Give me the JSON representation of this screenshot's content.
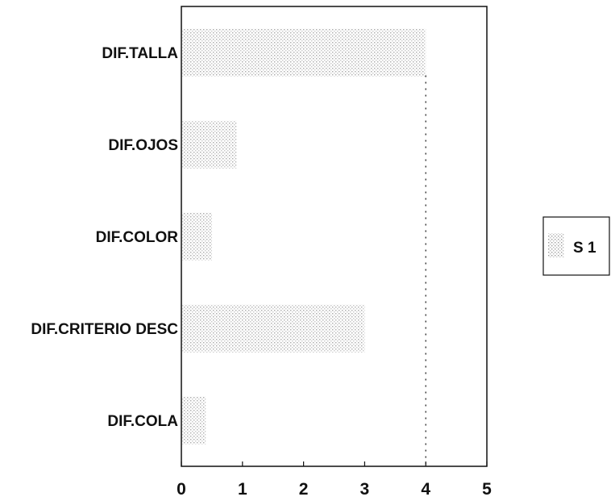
{
  "chart_data": {
    "type": "bar",
    "orientation": "horizontal",
    "categories": [
      "DIF.TALLA",
      "DIF.OJOS",
      "DIF.COLOR",
      "DIF.CRITERIO DESC",
      "DIF.COLA"
    ],
    "series": [
      {
        "name": "S 1",
        "values": [
          4,
          0.9,
          0.5,
          3,
          0.4
        ]
      }
    ],
    "xlim": [
      0,
      5
    ],
    "xticks": [
      0,
      1,
      2,
      3,
      4,
      5
    ],
    "reference_line": 4,
    "title": "",
    "xlabel": "",
    "ylabel": "",
    "grid": false,
    "legend": "right",
    "colors": {
      "bar": "#c9c9c9",
      "axis": "#111111"
    }
  }
}
